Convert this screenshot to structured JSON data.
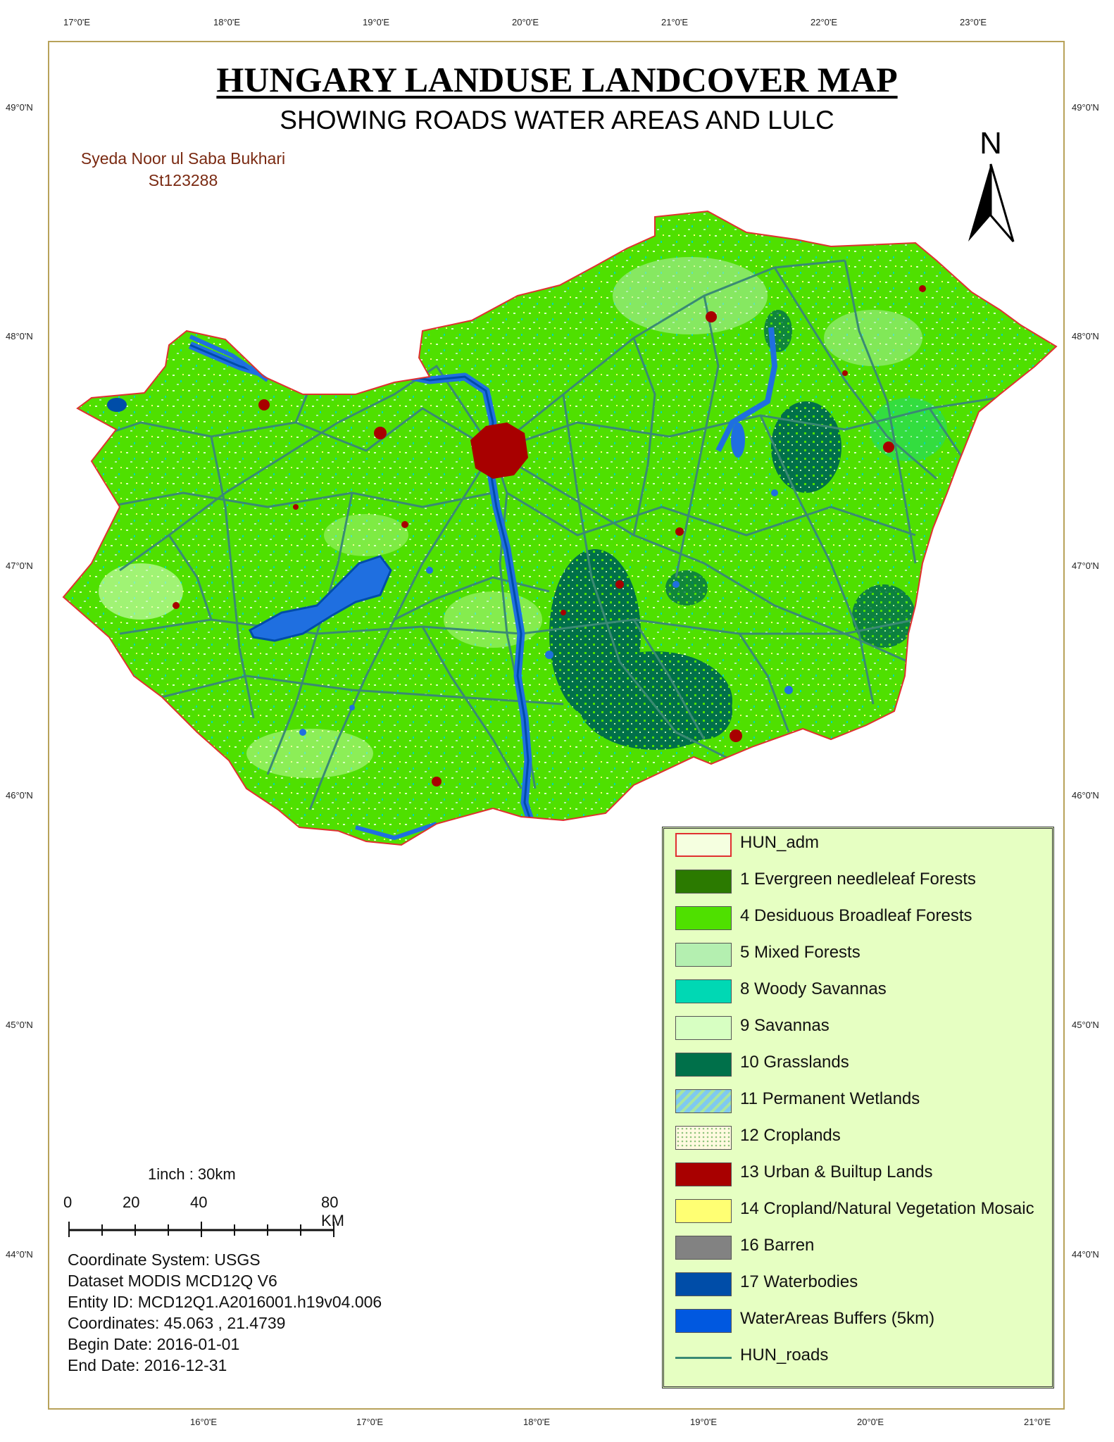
{
  "title": "HUNGARY LANDUSE LANDCOVER MAP",
  "subtitle": "SHOWING ROADS WATER AREAS AND LULC",
  "author": {
    "name": "Syeda Noor ul Saba Bukhari",
    "id": "St123288"
  },
  "north_label": "N",
  "top_ticks": [
    "17°0'E",
    "18°0'E",
    "19°0'E",
    "20°0'E",
    "21°0'E",
    "22°0'E",
    "23°0'E"
  ],
  "bottom_ticks": [
    "16°0'E",
    "17°0'E",
    "18°0'E",
    "19°0'E",
    "20°0'E",
    "21°0'E"
  ],
  "left_ticks": [
    "49°0'N",
    "48°0'N",
    "47°0'N",
    "46°0'N",
    "45°0'N",
    "44°0'N"
  ],
  "right_ticks": [
    "49°0'N",
    "48°0'N",
    "47°0'N",
    "46°0'N",
    "45°0'N",
    "44°0'N"
  ],
  "legend": [
    {
      "label": "HUN_adm",
      "color": "#f5ffe0",
      "style": "outline-red"
    },
    {
      "label": "1 Evergreen needleleaf Forests",
      "color": "#2b7a00",
      "style": "fill"
    },
    {
      "label": "4 Desiduous Broadleaf Forests",
      "color": "#4fe000",
      "style": "fill"
    },
    {
      "label": "5 Mixed Forests",
      "color": "#b4efb0",
      "style": "fill"
    },
    {
      "label": "8 Woody Savannas",
      "color": "#00d8b4",
      "style": "fill"
    },
    {
      "label": "9 Savannas",
      "color": "#d7ffc2",
      "style": "fill"
    },
    {
      "label": "10 Grasslands",
      "color": "#00704a",
      "style": "fill"
    },
    {
      "label": "11 Permanent Wetlands",
      "color": "#7fc9f0",
      "style": "hatch"
    },
    {
      "label": "12 Croplands",
      "color": "#fffae0",
      "style": "dots"
    },
    {
      "label": "13 Urban & Builtup Lands",
      "color": "#a80000",
      "style": "fill"
    },
    {
      "label": "14 Cropland/Natural Vegetation Mosaic",
      "color": "#ffff73",
      "style": "fill"
    },
    {
      "label": "16 Barren",
      "color": "#828282",
      "style": "fill"
    },
    {
      "label": "17 Waterbodies",
      "color": "#004da8",
      "style": "fill"
    },
    {
      "label": "WaterAreas Buffers (5km)",
      "color": "#0058e0",
      "style": "fill"
    },
    {
      "label": "HUN_roads",
      "color": "#3a8a74",
      "style": "line"
    }
  ],
  "scale": {
    "ratio": "1inch : 30km",
    "labels": [
      "0",
      "20",
      "40",
      "80 KM"
    ]
  },
  "info": [
    "Coordinate System: USGS",
    "Dataset MODIS MCD12Q V6",
    "Entity ID: MCD12Q1.A2016001.h19v04.006",
    "Coordinates: 45.063 , 21.4739",
    "Begin Date: 2016-01-01",
    "End Date: 2016-12-31"
  ],
  "colors": {
    "land": "#4fe000",
    "border": "#e03030",
    "water": "#1f6fe0",
    "road": "#3a8a74",
    "urban": "#a80000",
    "grassland": "#00704a"
  }
}
